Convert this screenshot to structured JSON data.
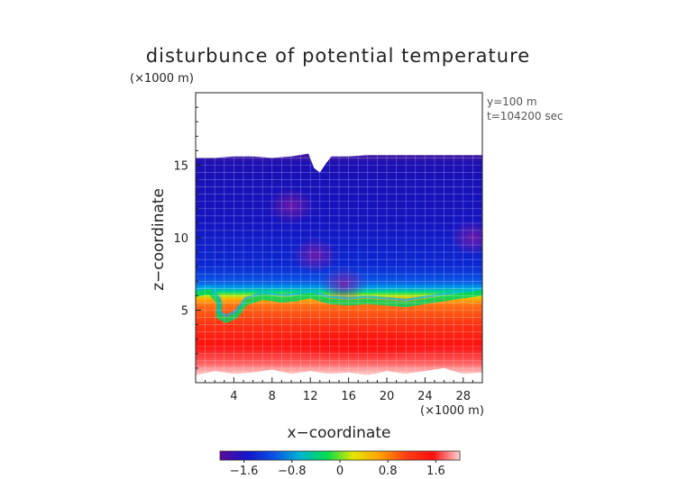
{
  "chart_data": {
    "type": "heatmap",
    "title": "disturbunce of potential temperature",
    "xlabel": "x−coordinate",
    "ylabel": "z−coordinate",
    "x_unit": "(×1000 m)",
    "y_unit": "(×1000 m)",
    "annotations": [
      "y=100  m",
      "t=104200 sec"
    ],
    "xlim": [
      0,
      30
    ],
    "ylim": [
      0,
      20
    ],
    "x_ticks": [
      4,
      8,
      12,
      16,
      20,
      24,
      28
    ],
    "x_tick_labels": [
      "4",
      "8",
      "12",
      "16",
      "20",
      "24",
      "28"
    ],
    "y_ticks": [
      5,
      10,
      15
    ],
    "y_tick_labels": [
      "5",
      "10",
      "15"
    ],
    "grid": true,
    "colorbar": {
      "ticks": [
        -1.6,
        -0.8,
        0,
        0.8,
        1.6
      ],
      "tick_labels": [
        "−1.6",
        "−0.8",
        "0",
        "0.8",
        "1.6"
      ],
      "range": [
        -2.0,
        2.0
      ],
      "colors": [
        "#5a0a9a",
        "#1414c8",
        "#0a50e6",
        "#00b4d2",
        "#00dc50",
        "#e6e600",
        "#ffa000",
        "#ff3c14",
        "#ff1010",
        "#ffd2d2"
      ]
    },
    "fields": {
      "top_of_field_km": [
        [
          0,
          15.5
        ],
        [
          2,
          15.5
        ],
        [
          4,
          15.6
        ],
        [
          6,
          15.6
        ],
        [
          8,
          15.5
        ],
        [
          10,
          15.6
        ],
        [
          11.8,
          15.8
        ],
        [
          12.4,
          14.8
        ],
        [
          13.0,
          14.5
        ],
        [
          13.6,
          15.1
        ],
        [
          14.2,
          15.6
        ],
        [
          16,
          15.6
        ],
        [
          18,
          15.7
        ],
        [
          20,
          15.7
        ],
        [
          24,
          15.7
        ],
        [
          28,
          15.7
        ],
        [
          30,
          15.7
        ]
      ],
      "bottom_of_field_km": [
        [
          0,
          0.5
        ],
        [
          2,
          0.8
        ],
        [
          4,
          0.6
        ],
        [
          6,
          0.7
        ],
        [
          8,
          0.9
        ],
        [
          10,
          0.6
        ],
        [
          12,
          0.8
        ],
        [
          14,
          0.6
        ],
        [
          16,
          0.7
        ],
        [
          18,
          0.5
        ],
        [
          20,
          0.8
        ],
        [
          22,
          0.6
        ],
        [
          24,
          0.8
        ],
        [
          26,
          1.0
        ],
        [
          28,
          0.6
        ],
        [
          30,
          0.7
        ]
      ],
      "transition_layer_km": [
        [
          0,
          6.1
        ],
        [
          1.5,
          6.3
        ],
        [
          2.5,
          5.5
        ],
        [
          2.4,
          4.6
        ],
        [
          3.2,
          4.3
        ],
        [
          4.2,
          4.6
        ],
        [
          5.2,
          5.5
        ],
        [
          7,
          5.9
        ],
        [
          9,
          5.7
        ],
        [
          10.5,
          5.8
        ],
        [
          12,
          6.0
        ],
        [
          14,
          5.6
        ],
        [
          16,
          5.5
        ],
        [
          18,
          5.6
        ],
        [
          20,
          5.5
        ],
        [
          22,
          5.4
        ],
        [
          24,
          5.6
        ],
        [
          26,
          5.8
        ],
        [
          28,
          6.0
        ],
        [
          30,
          6.2
        ]
      ],
      "cool_anomalies": [
        {
          "x": 10,
          "z": 12.2,
          "value": -1.8
        },
        {
          "x": 12.5,
          "z": 8.8,
          "value": -1.7
        },
        {
          "x": 29,
          "z": 10,
          "value": -1.7
        },
        {
          "x": 15.5,
          "z": 6.8,
          "value": -1.5
        }
      ],
      "warm_core": {
        "x_range": [
          8,
          26
        ],
        "z_range": [
          1.5,
          3.8
        ],
        "value": 1.9
      }
    }
  }
}
